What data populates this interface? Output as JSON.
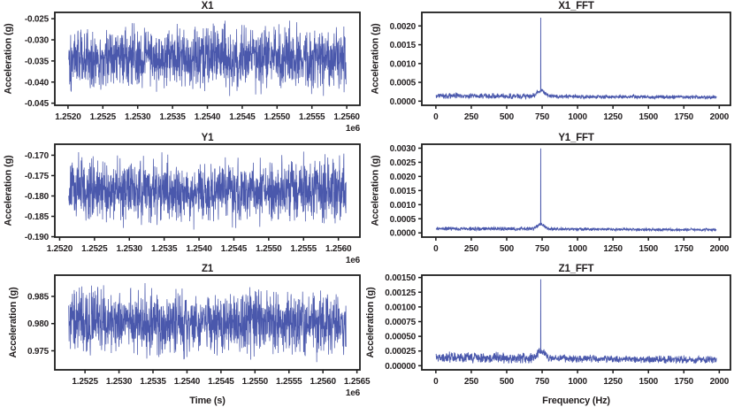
{
  "figure": {
    "background": "#ffffff",
    "frame_color": "#1f1f1f",
    "text_color": "#231f20",
    "line_color": "#3b4aa5"
  },
  "chart_data": [
    {
      "id": "x1",
      "type": "line",
      "title": "X1",
      "xlabel": "",
      "ylabel": "Acceleration (g)",
      "x_offset_label": "1e6",
      "grid": false,
      "xlim": [
        1251811,
        1256189
      ],
      "ylim": [
        -0.0455,
        -0.0235
      ],
      "xticks": {
        "values": [
          1252000,
          1252500,
          1253000,
          1253500,
          1254000,
          1254500,
          1255000,
          1255500,
          1256000
        ],
        "labels": [
          "1.2520",
          "1.2525",
          "1.2530",
          "1.2535",
          "1.2540",
          "1.2545",
          "1.2550",
          "1.2555",
          "1.2560"
        ]
      },
      "yticks": {
        "values": [
          -0.025,
          -0.03,
          -0.035,
          -0.04,
          -0.045
        ],
        "labels": [
          "-0.025",
          "-0.030",
          "-0.035",
          "-0.040",
          "-0.045"
        ]
      },
      "signal": {
        "kind": "noise",
        "n": 1400,
        "seed": 101,
        "x_start": 1252010,
        "x_end": 1255990,
        "mean": -0.0343,
        "half_range": 0.0103
      }
    },
    {
      "id": "x1_fft",
      "type": "line",
      "title": "X1_FFT",
      "xlabel": "",
      "ylabel": "Acceleration (g)",
      "x_offset_label": "",
      "grid": false,
      "xlim": [
        -99,
        2079
      ],
      "ylim": [
        -0.00011,
        0.00236
      ],
      "xticks": {
        "values": [
          0,
          250,
          500,
          750,
          1000,
          1250,
          1500,
          1750,
          2000
        ],
        "labels": [
          "0",
          "250",
          "500",
          "750",
          "1000",
          "1250",
          "1500",
          "1750",
          "2000"
        ]
      },
      "yticks": {
        "values": [
          0.002,
          0.0015,
          0.001,
          0.0005,
          0.0
        ],
        "labels": [
          "0.0020",
          "0.0015",
          "0.0010",
          "0.0005",
          "0.0000"
        ]
      },
      "signal": {
        "kind": "fft",
        "n": 1200,
        "seed": 404,
        "x_start": 2,
        "x_end": 1980,
        "floor": 0.00013,
        "floor_noise": 7e-05,
        "peak_freq": 740,
        "peak_value": 0.00222,
        "peak_width": 2.5,
        "shoulder": 0.00016,
        "shoulder_width": 26
      }
    },
    {
      "id": "y1",
      "type": "line",
      "title": "Y1",
      "xlabel": "",
      "ylabel": "Acceleration (g)",
      "x_offset_label": "1e6",
      "grid": false,
      "xlim": [
        1251931,
        1256309
      ],
      "ylim": [
        -0.1901,
        -0.1673
      ],
      "xticks": {
        "values": [
          1252000,
          1252500,
          1253000,
          1253500,
          1254000,
          1254500,
          1255000,
          1255500,
          1256000
        ],
        "labels": [
          "1.2520",
          "1.2525",
          "1.2530",
          "1.2535",
          "1.2540",
          "1.2545",
          "1.2550",
          "1.2555",
          "1.2560"
        ]
      },
      "yticks": {
        "values": [
          -0.17,
          -0.175,
          -0.18,
          -0.185,
          -0.19
        ],
        "labels": [
          "-0.170",
          "-0.175",
          "-0.180",
          "-0.185",
          "-0.190"
        ]
      },
      "signal": {
        "kind": "noise",
        "n": 1400,
        "seed": 202,
        "x_start": 1252130,
        "x_end": 1256110,
        "mean": -0.1786,
        "half_range": 0.0106
      }
    },
    {
      "id": "y1_fft",
      "type": "line",
      "title": "Y1_FFT",
      "xlabel": "",
      "ylabel": "Acceleration (g)",
      "x_offset_label": "",
      "grid": false,
      "xlim": [
        -99,
        2079
      ],
      "ylim": [
        -0.00015,
        0.00314
      ],
      "xticks": {
        "values": [
          0,
          250,
          500,
          750,
          1000,
          1250,
          1500,
          1750,
          2000
        ],
        "labels": [
          "0",
          "250",
          "500",
          "750",
          "1000",
          "1250",
          "1500",
          "1750",
          "2000"
        ]
      },
      "yticks": {
        "values": [
          0.003,
          0.0025,
          0.002,
          0.0015,
          0.001,
          0.0005,
          0.0
        ],
        "labels": [
          "0.0030",
          "0.0025",
          "0.0020",
          "0.0015",
          "0.0010",
          "0.0005",
          "0.0000"
        ]
      },
      "signal": {
        "kind": "fft",
        "n": 1200,
        "seed": 505,
        "x_start": 2,
        "x_end": 1980,
        "floor": 0.00014,
        "floor_noise": 7e-05,
        "peak_freq": 740,
        "peak_value": 0.00299,
        "peak_width": 2.5,
        "shoulder": 0.00018,
        "shoulder_width": 24
      }
    },
    {
      "id": "z1",
      "type": "line",
      "title": "Z1",
      "xlabel": "Time (s)",
      "ylabel": "Acceleration (g)",
      "x_offset_label": "1e6",
      "grid": false,
      "xlim": [
        1252056,
        1256544
      ],
      "ylim": [
        0.9715,
        0.9889
      ],
      "xticks": {
        "values": [
          1252500,
          1253000,
          1253500,
          1254000,
          1254500,
          1255000,
          1255500,
          1256000,
          1256500
        ],
        "labels": [
          "1.2525",
          "1.2530",
          "1.2535",
          "1.2540",
          "1.2545",
          "1.2550",
          "1.2555",
          "1.2560",
          "1.2565"
        ]
      },
      "yticks": {
        "values": [
          0.985,
          0.98,
          0.975
        ],
        "labels": [
          "0.985",
          "0.980",
          "0.975"
        ]
      },
      "signal": {
        "kind": "noise",
        "n": 1400,
        "seed": 303,
        "x_start": 1252260,
        "x_end": 1256340,
        "mean": 0.9802,
        "half_range": 0.008
      }
    },
    {
      "id": "z1_fft",
      "type": "line",
      "title": "Z1_FFT",
      "xlabel": "Frequency (Hz)",
      "ylabel": "Acceleration (g)",
      "x_offset_label": "",
      "grid": false,
      "xlim": [
        -99,
        2079
      ],
      "ylim": [
        -7e-05,
        0.00154
      ],
      "xticks": {
        "values": [
          0,
          250,
          500,
          750,
          1000,
          1250,
          1500,
          1750,
          2000
        ],
        "labels": [
          "0",
          "250",
          "500",
          "750",
          "1000",
          "1250",
          "1500",
          "1750",
          "2000"
        ]
      },
      "yticks": {
        "values": [
          0.0015,
          0.00125,
          0.001,
          0.00075,
          0.0005,
          0.00025,
          0.0
        ],
        "labels": [
          "0.00150",
          "0.00125",
          "0.00100",
          "0.00075",
          "0.00050",
          "0.00025",
          "0.00000"
        ]
      },
      "signal": {
        "kind": "fft",
        "n": 1200,
        "seed": 606,
        "x_start": 2,
        "x_end": 1980,
        "floor": 0.00013,
        "floor_noise": 9e-05,
        "peak_freq": 740,
        "peak_value": 0.00147,
        "peak_width": 2.5,
        "shoulder": 0.00013,
        "shoulder_width": 26
      }
    }
  ]
}
